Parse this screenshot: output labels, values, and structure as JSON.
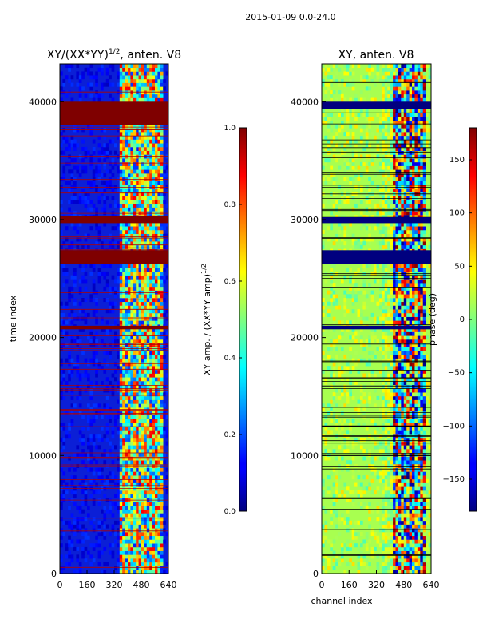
{
  "figure_title": "2015-01-09 0.0-24.0",
  "chart_data": [
    {
      "type": "heatmap",
      "title_main": "XY/(XX*YY)",
      "title_exp": "1/2",
      "title_rest": ", anten. V8",
      "xlabel": "",
      "ylabel": "time index",
      "xlim": [
        0,
        640
      ],
      "ylim": [
        0,
        43200
      ],
      "xticks": [
        0,
        160,
        320,
        480,
        640
      ],
      "yticks": [
        0,
        10000,
        20000,
        30000,
        40000
      ],
      "xtick_labels": [
        "0",
        "160",
        "320",
        "480",
        "640"
      ],
      "ytick_labels": [
        "0",
        "10000",
        "20000",
        "30000",
        "40000"
      ],
      "colormap": "jet",
      "colorbar": {
        "label_main": "XY amp. / (XX*YY amp)",
        "label_exp": "1/2",
        "range": [
          0.0,
          1.0
        ],
        "ticks": [
          0.0,
          0.2,
          0.4,
          0.6,
          0.8,
          1.0
        ],
        "tick_labels": [
          "0.0",
          "0.2",
          "0.4",
          "0.6",
          "0.8",
          "1.0"
        ]
      },
      "saturated_bands": [
        [
          38000,
          40000
        ],
        [
          29700,
          30300
        ],
        [
          26200,
          27400
        ],
        [
          20700,
          21000
        ]
      ]
    },
    {
      "type": "heatmap",
      "title": "XY, anten. V8",
      "xlabel": "channel index",
      "ylabel": "",
      "xlim": [
        0,
        640
      ],
      "ylim": [
        0,
        43200
      ],
      "xticks": [
        0,
        160,
        320,
        480,
        640
      ],
      "yticks": [
        0,
        10000,
        20000,
        30000,
        40000
      ],
      "xtick_labels": [
        "0",
        "160",
        "320",
        "480",
        "640"
      ],
      "ytick_labels": [
        "0",
        "10000",
        "20000",
        "30000",
        "40000"
      ],
      "colormap": "jet",
      "colorbar": {
        "label": "phase (deg)",
        "range": [
          -180,
          180
        ],
        "ticks": [
          -150,
          -100,
          -50,
          0,
          50,
          100,
          150
        ],
        "tick_labels": [
          "−150",
          "−100",
          "−50",
          "0",
          "50",
          "100",
          "150"
        ]
      },
      "saturated_bands": [
        [
          39400,
          40000
        ],
        [
          29700,
          30200
        ],
        [
          26200,
          27400
        ],
        [
          20700,
          21000
        ]
      ]
    }
  ],
  "colors": {
    "jet_dark_blue": "#00007f",
    "jet_blue": "#0000ff",
    "jet_cyan": "#00ffff",
    "jet_yellow": "#ffff00",
    "jet_red": "#ff0000",
    "jet_dark_red": "#7f0000",
    "phase_background": "#a8ff50"
  }
}
